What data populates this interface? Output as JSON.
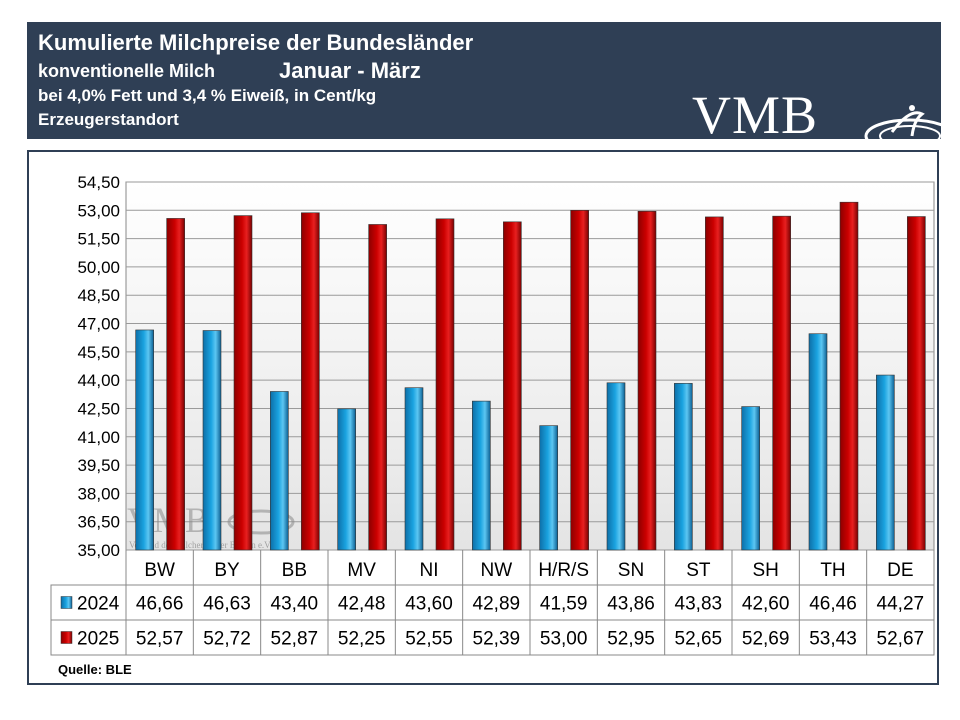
{
  "header": {
    "title": "Kumulierte Milchpreise der Bundesländer",
    "subtitle1": "konventionelle  Milch",
    "period": "Januar - März",
    "subtitle2": "bei 4,0% Fett und 3,4 % Eiweiß, in Cent/kg",
    "subtitle3": "Erzeugerstandort",
    "logo": "VMB"
  },
  "watermark": {
    "logo": "VMB",
    "caption": "Verband der Milcherzeuger Bayern e.V."
  },
  "source": "Quelle: BLE",
  "colors": {
    "header_bg": "#2f3f55",
    "series_2024": "#1aa3e0",
    "series_2025": "#cc0000"
  },
  "chart_data": {
    "type": "bar",
    "categories": [
      "BW",
      "BY",
      "BB",
      "MV",
      "NI",
      "NW",
      "H/R/S",
      "SN",
      "ST",
      "SH",
      "TH",
      "DE"
    ],
    "series": [
      {
        "name": "2024",
        "values": [
          46.66,
          46.63,
          43.4,
          42.48,
          43.6,
          42.89,
          41.59,
          43.86,
          43.83,
          42.6,
          46.46,
          44.27
        ],
        "labels": [
          "46,66",
          "46,63",
          "43,40",
          "42,48",
          "43,60",
          "42,89",
          "41,59",
          "43,86",
          "43,83",
          "42,60",
          "46,46",
          "44,27"
        ]
      },
      {
        "name": "2025",
        "values": [
          52.57,
          52.72,
          52.87,
          52.25,
          52.55,
          52.39,
          53.0,
          52.95,
          52.65,
          52.69,
          53.43,
          52.67
        ],
        "labels": [
          "52,57",
          "52,72",
          "52,87",
          "52,25",
          "52,55",
          "52,39",
          "53,00",
          "52,95",
          "52,65",
          "52,69",
          "53,43",
          "52,67"
        ]
      }
    ],
    "ylim": [
      35.0,
      54.5
    ],
    "yticks": [
      35.0,
      36.5,
      38.0,
      39.5,
      41.0,
      42.5,
      44.0,
      45.5,
      47.0,
      48.5,
      50.0,
      51.5,
      53.0,
      54.5
    ],
    "ytick_labels": [
      "35,00",
      "36,50",
      "38,00",
      "39,50",
      "41,00",
      "42,50",
      "44,00",
      "45,50",
      "47,00",
      "48,50",
      "50,00",
      "51,50",
      "53,00",
      "54,50"
    ],
    "grid": true,
    "legend": "data table below chart"
  }
}
